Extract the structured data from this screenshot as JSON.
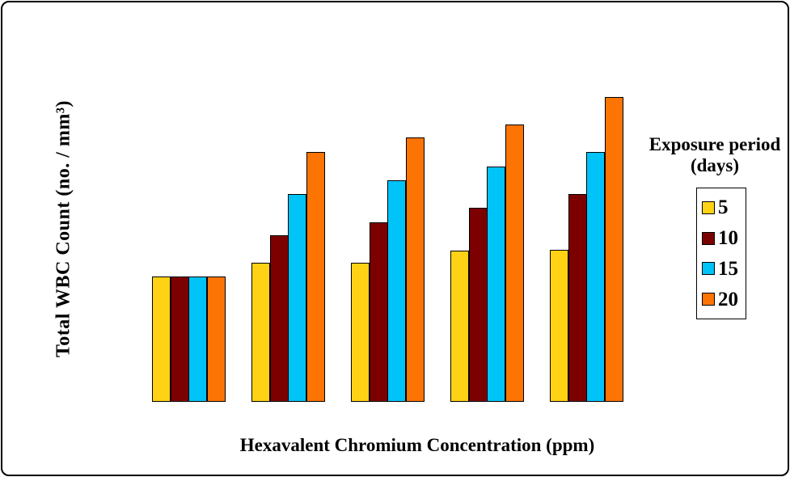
{
  "frame": {
    "background_color": "#FFFFFF",
    "border_color": "#000000"
  },
  "legend": {
    "title_line1": "Exposure period",
    "title_line2": "(days)"
  },
  "chart_data": {
    "type": "bar",
    "title": "",
    "xlabel": "Hexavalent Chromium Concentration (ppm)",
    "ylabel": "Total WBC Count (no. / mm³)",
    "categories": [
      "",
      "",
      "",
      "",
      ""
    ],
    "x_tick_labels_visible": false,
    "y_tick_labels_visible": false,
    "grid": false,
    "axis_lines_visible": false,
    "legend_title": "Exposure period (days)",
    "legend_position": "right",
    "bar_outline_color": "#000000",
    "series": [
      {
        "name": "5",
        "color": "#FFD215",
        "values": [
          155,
          172,
          172,
          187,
          188
        ]
      },
      {
        "name": "10",
        "color": "#7D0000",
        "values": [
          155,
          206,
          222,
          240,
          257
        ]
      },
      {
        "name": "15",
        "color": "#00C3F7",
        "values": [
          155,
          257,
          274,
          291,
          309
        ]
      },
      {
        "name": "20",
        "color": "#FB7404",
        "values": [
          155,
          309,
          327,
          343,
          377
        ]
      }
    ],
    "value_scale_note": "value axis has no numeric tick labels; values are relative bar heights",
    "ylim": [
      0,
      420
    ]
  }
}
